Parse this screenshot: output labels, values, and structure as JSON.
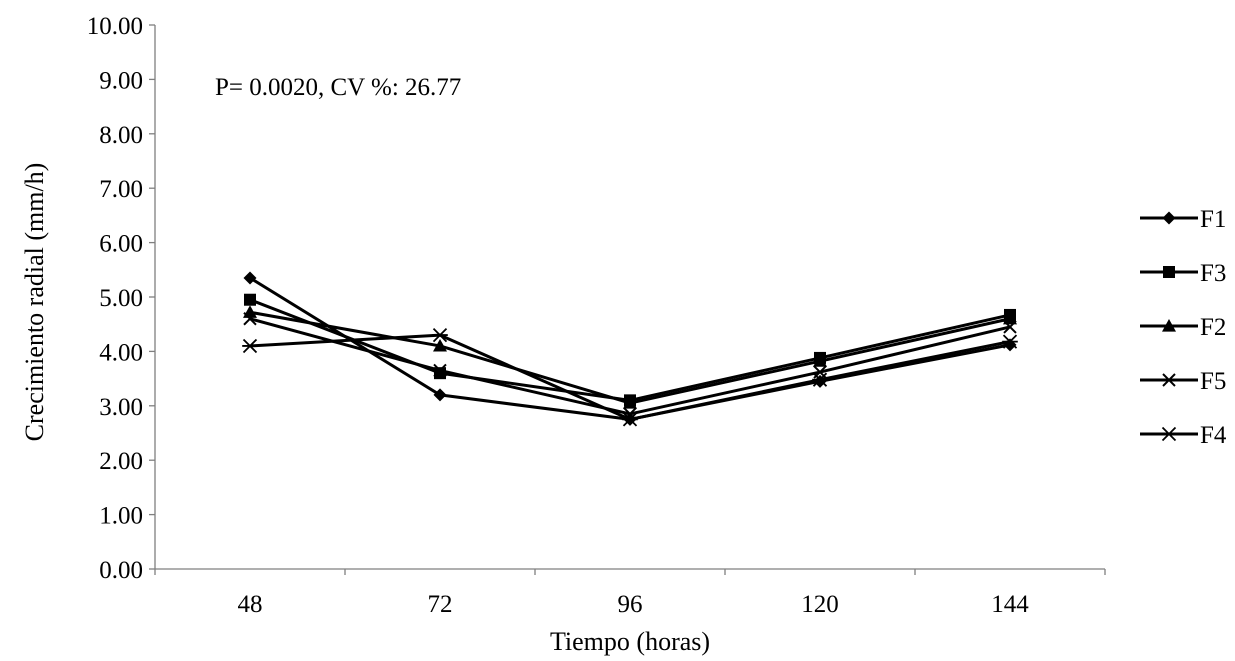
{
  "chart_data": {
    "type": "line",
    "title": "",
    "annotation": "P= 0.0020, CV %: 26.77",
    "xlabel": "Tiempo (horas)",
    "ylabel": "Crecimiento radial  (mm/h)",
    "categories": [
      "48",
      "72",
      "96",
      "120",
      "144"
    ],
    "ylim": [
      0,
      10
    ],
    "yticks": [
      "0.00",
      "1.00",
      "2.00",
      "3.00",
      "4.00",
      "5.00",
      "6.00",
      "7.00",
      "8.00",
      "9.00",
      "10.00"
    ],
    "grid": false,
    "legend_position": "right",
    "series": [
      {
        "name": "F1",
        "marker": "diamond",
        "color": "#000000",
        "values": [
          5.35,
          3.2,
          2.75,
          3.45,
          4.12
        ]
      },
      {
        "name": "F3",
        "marker": "square",
        "color": "#000000",
        "values": [
          4.95,
          3.6,
          3.1,
          3.88,
          4.67
        ]
      },
      {
        "name": "F2",
        "marker": "triangle",
        "color": "#000000",
        "values": [
          4.72,
          4.1,
          3.05,
          3.82,
          4.6
        ]
      },
      {
        "name": "F5",
        "marker": "x",
        "color": "#000000",
        "values": [
          4.6,
          3.65,
          2.85,
          3.62,
          4.45
        ]
      },
      {
        "name": "F4",
        "marker": "asterisk",
        "color": "#000000",
        "values": [
          4.1,
          4.3,
          2.75,
          3.48,
          4.18
        ]
      }
    ]
  }
}
